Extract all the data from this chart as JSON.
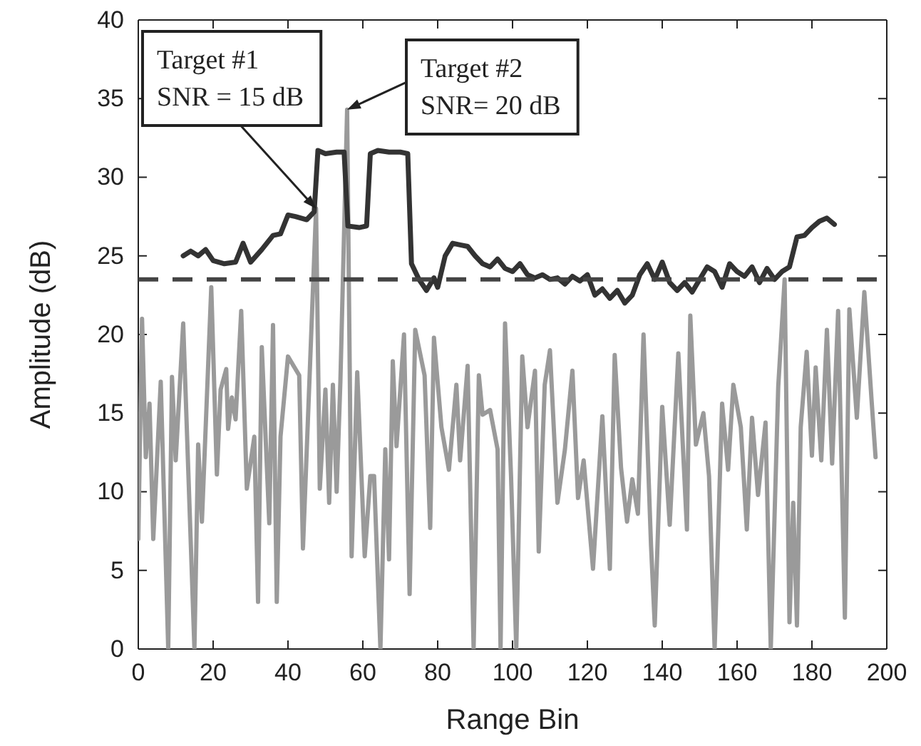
{
  "chart_data": {
    "type": "line",
    "xlabel": "Range Bin",
    "ylabel": "Amplitude (dB)",
    "xlim": [
      0,
      200
    ],
    "xticks": [
      0,
      20,
      40,
      60,
      80,
      100,
      120,
      140,
      160,
      180,
      200
    ],
    "ylim": [
      0,
      40
    ],
    "yticks": [
      0,
      5,
      10,
      15,
      20,
      25,
      30,
      35,
      40
    ],
    "grid": false,
    "marker": "none",
    "series": [
      {
        "color": "#9a9a9a",
        "x": [
          0,
          1,
          2,
          3,
          4,
          6,
          8,
          9,
          10,
          12,
          15,
          16,
          17,
          19.5,
          21,
          22,
          23.5,
          24,
          25,
          26,
          27.5,
          29,
          31,
          32,
          33,
          35,
          36,
          37,
          38,
          40,
          43,
          44,
          47.5,
          48.5,
          50,
          51,
          52,
          53,
          54,
          55.8,
          57,
          58.5,
          60.5,
          62,
          63,
          64.7,
          66,
          67,
          68,
          69,
          71,
          72.5,
          74,
          76.5,
          78,
          79,
          81,
          83,
          85,
          86,
          88,
          89.6,
          91,
          92,
          94,
          96,
          96.8,
          98,
          99.6,
          101,
          102.6,
          104,
          106,
          107,
          108.6,
          110,
          112,
          114,
          116,
          117.5,
          119,
          121.5,
          124,
          126,
          127.3,
          129,
          130.6,
          132,
          133.5,
          135,
          137,
          138,
          140,
          142,
          144.3,
          146.6,
          147.5,
          149,
          151,
          152.5,
          154,
          156,
          157.6,
          159,
          161,
          162.6,
          164,
          165.6,
          167.6,
          169,
          171,
          172.7,
          174,
          175,
          176,
          177,
          178.6,
          180,
          181,
          182.5,
          184,
          185.4,
          187,
          188.8,
          190,
          192,
          194,
          196,
          197
        ],
        "values": [
          7,
          21,
          12.2,
          15.6,
          7,
          17,
          0,
          17.3,
          12,
          20.7,
          0,
          13,
          8.1,
          23,
          11.1,
          16.5,
          17.8,
          14,
          16,
          14.6,
          21.5,
          10.2,
          13.5,
          3,
          19.2,
          8,
          20.6,
          3,
          13.5,
          18.6,
          17.4,
          6.4,
          28,
          10.2,
          16.5,
          9.3,
          16.8,
          10,
          17,
          34.3,
          5.9,
          17.6,
          5.9,
          11,
          11,
          0,
          12.7,
          5.7,
          18.3,
          12.9,
          20,
          3.5,
          20.3,
          17.4,
          7.7,
          19.8,
          14.1,
          11.4,
          16.8,
          12,
          18,
          0,
          17.4,
          14.9,
          15.2,
          12.7,
          0,
          20.7,
          11,
          0,
          18.6,
          14.1,
          17.7,
          6.2,
          16.8,
          19,
          9.3,
          12.7,
          17.7,
          9.6,
          12,
          5.1,
          14.8,
          5.1,
          18.7,
          11.5,
          8.1,
          10.8,
          8.6,
          20,
          6.6,
          1.5,
          15.4,
          7.9,
          18.8,
          7.6,
          21.2,
          13,
          15,
          11,
          0,
          15.6,
          11.4,
          16.8,
          14.1,
          7.6,
          14.7,
          9.8,
          14.4,
          0,
          16.7,
          23.5,
          1.7,
          9.3,
          1.5,
          14.1,
          18.9,
          12.3,
          17.9,
          12,
          20.3,
          11.8,
          21.5,
          2,
          21.6,
          14.7,
          22.7,
          15.6,
          12.2
        ]
      },
      {
        "color": "#333333",
        "x": [
          12,
          14,
          16,
          18,
          20,
          23,
          26,
          28,
          30,
          33,
          36,
          38,
          40,
          42,
          45,
          47,
          48,
          50,
          53,
          55,
          56,
          59,
          61,
          62,
          64,
          67,
          70,
          72,
          73,
          75,
          77,
          79,
          80,
          82,
          84,
          86,
          88,
          90,
          92,
          94,
          96,
          98,
          100,
          102,
          104,
          106,
          108,
          110,
          112,
          114,
          116,
          118,
          120,
          122,
          124,
          126,
          128,
          130,
          132,
          134,
          136,
          138,
          140,
          142,
          144,
          146,
          148,
          150,
          152,
          154,
          156,
          158,
          160,
          162,
          164,
          166,
          168,
          170,
          172,
          174,
          176,
          178,
          180,
          182,
          184,
          186
        ],
        "values": [
          25,
          25.3,
          25,
          25.4,
          24.7,
          24.5,
          24.6,
          25.8,
          24.6,
          25.4,
          26.3,
          26.4,
          27.6,
          27.5,
          27.3,
          27.8,
          31.7,
          31.5,
          31.6,
          31.6,
          26.9,
          26.8,
          26.9,
          31.5,
          31.7,
          31.6,
          31.6,
          31.5,
          24.5,
          23.5,
          22.8,
          23.6,
          23,
          25,
          25.8,
          25.7,
          25.6,
          25,
          24.5,
          24.3,
          24.8,
          24.2,
          24,
          24.5,
          23.8,
          23.6,
          23.8,
          23.5,
          23.6,
          23.2,
          23.7,
          23.4,
          23.8,
          22.5,
          22.9,
          22.3,
          22.8,
          22,
          22.5,
          23.8,
          24.5,
          23.5,
          24.6,
          23.3,
          22.8,
          23.3,
          22.7,
          23.5,
          24.3,
          24,
          23,
          24.5,
          24,
          23.7,
          24.3,
          23.3,
          24.2,
          23.5,
          24,
          24.3,
          26.2,
          26.3,
          26.8,
          27.2,
          27.4,
          27
        ]
      }
    ],
    "ref_lines": [
      {
        "axis": "y",
        "value": 23.5,
        "color": "#444444",
        "line_style": "dashed"
      }
    ],
    "annotations": [
      {
        "text": "Target #1\nSNR = 15 dB",
        "x": 47.5,
        "y": 28
      },
      {
        "text": "Target #2\nSNR= 20 dB",
        "x": 55.8,
        "y": 34.3
      }
    ]
  }
}
